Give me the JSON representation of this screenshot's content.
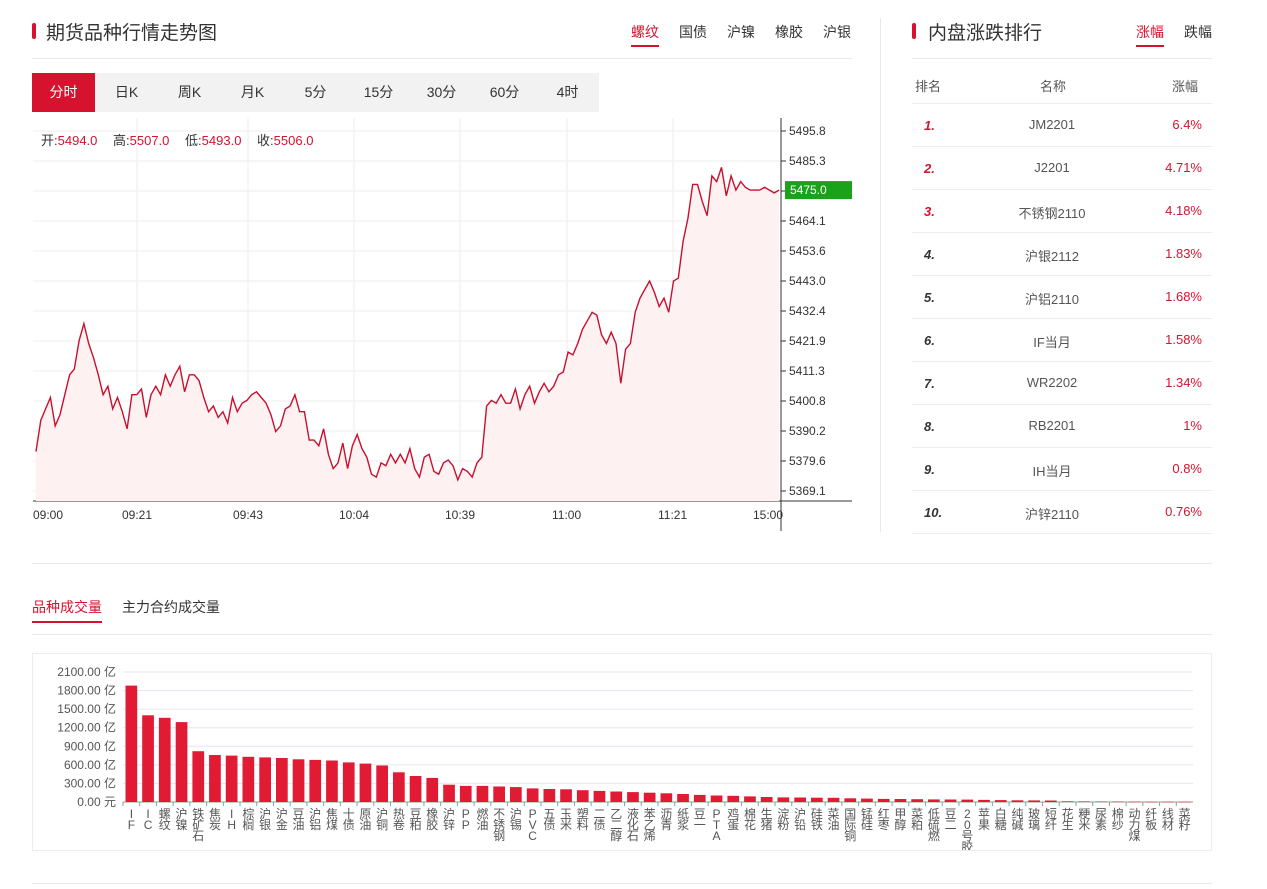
{
  "left_panel": {
    "title": "期货品种行情走势图",
    "tabs": [
      {
        "label": "螺纹",
        "active": true
      },
      {
        "label": "国债",
        "active": false
      },
      {
        "label": "沪镍",
        "active": false
      },
      {
        "label": "橡胶",
        "active": false
      },
      {
        "label": "沪银",
        "active": false
      }
    ],
    "periods": [
      {
        "label": "分时",
        "active": true
      },
      {
        "label": "日K",
        "active": false
      },
      {
        "label": "周K",
        "active": false
      },
      {
        "label": "月K",
        "active": false
      },
      {
        "label": "5分",
        "active": false
      },
      {
        "label": "15分",
        "active": false
      },
      {
        "label": "30分",
        "active": false
      },
      {
        "label": "60分",
        "active": false
      },
      {
        "label": "4时",
        "active": false
      }
    ],
    "ohlc": {
      "open_label": "开:",
      "open": "5494.0",
      "high_label": "高:",
      "high": "5507.0",
      "low_label": "低:",
      "low": "5493.0",
      "close_label": "收:",
      "close": "5506.0"
    }
  },
  "price_chart": {
    "type": "line",
    "y_ticks": [
      "5495.8",
      "5485.3",
      "5475.0",
      "5464.1",
      "5453.6",
      "5443.0",
      "5432.4",
      "5421.9",
      "5411.3",
      "5400.8",
      "5390.2",
      "5379.6",
      "5369.1"
    ],
    "ylim": [
      5369.1,
      5495.8
    ],
    "current_price": "5475.0",
    "x_ticks": [
      "09:00",
      "09:21",
      "09:43",
      "10:04",
      "10:39",
      "11:00",
      "11:21",
      "15:00"
    ],
    "values": [
      5383,
      5394,
      5398,
      5402,
      5392,
      5396,
      5403,
      5410,
      5412,
      5422,
      5428,
      5421,
      5416,
      5410,
      5403,
      5406,
      5398,
      5402,
      5397,
      5391,
      5403,
      5403,
      5405,
      5395,
      5403,
      5406,
      5403,
      5410,
      5406,
      5410,
      5413,
      5404,
      5410,
      5410,
      5408,
      5402,
      5397,
      5399,
      5395,
      5397,
      5393,
      5402,
      5397,
      5400,
      5401,
      5403,
      5404,
      5402,
      5400,
      5396,
      5390,
      5392,
      5398,
      5399,
      5403,
      5397,
      5397,
      5387,
      5387,
      5385,
      5391,
      5382,
      5377,
      5379,
      5386,
      5377,
      5385,
      5389,
      5384,
      5381,
      5375,
      5374,
      5379,
      5378,
      5382,
      5379,
      5382,
      5379,
      5384,
      5377,
      5374,
      5381,
      5382,
      5376,
      5375,
      5379,
      5380,
      5378,
      5373,
      5377,
      5376,
      5374,
      5379,
      5381,
      5399,
      5401,
      5400,
      5403,
      5400,
      5400,
      5405,
      5398,
      5403,
      5406,
      5400,
      5404,
      5407,
      5404,
      5406,
      5410,
      5411,
      5418,
      5417,
      5421,
      5426,
      5429,
      5432,
      5431,
      5424,
      5421,
      5425,
      5421,
      5407,
      5419,
      5421,
      5432,
      5437,
      5440,
      5443,
      5439,
      5434,
      5437,
      5432,
      5443,
      5444,
      5457,
      5465,
      5477,
      5477,
      5471,
      5466,
      5480,
      5478,
      5483,
      5473,
      5480,
      5475,
      5478,
      5476,
      5475,
      5475,
      5475,
      5476,
      5475,
      5474,
      5475
    ]
  },
  "right_panel": {
    "title": "内盘涨跌排行",
    "tabs": [
      {
        "label": "涨幅",
        "active": true
      },
      {
        "label": "跌幅",
        "active": false
      }
    ],
    "headers": {
      "rank": "排名",
      "name": "名称",
      "change": "涨幅"
    },
    "rows": [
      {
        "rank": "1.",
        "name": "JM2201",
        "change": "6.4%"
      },
      {
        "rank": "2.",
        "name": "J2201",
        "change": "4.71%"
      },
      {
        "rank": "3.",
        "name": "不锈钢2110",
        "change": "4.18%"
      },
      {
        "rank": "4.",
        "name": "沪银2112",
        "change": "1.83%"
      },
      {
        "rank": "5.",
        "name": "沪铝2110",
        "change": "1.68%"
      },
      {
        "rank": "6.",
        "name": "IF当月",
        "change": "1.58%"
      },
      {
        "rank": "7.",
        "name": "WR2202",
        "change": "1.34%"
      },
      {
        "rank": "8.",
        "name": "RB2201",
        "change": "1%"
      },
      {
        "rank": "9.",
        "name": "IH当月",
        "change": "0.8%"
      },
      {
        "rank": "10.",
        "name": "沪锌2110",
        "change": "0.76%"
      }
    ]
  },
  "volume_section": {
    "tabs": [
      {
        "label": "品种成交量",
        "active": true
      },
      {
        "label": "主力合约成交量",
        "active": false
      }
    ]
  },
  "chart_data": {
    "type": "bar",
    "y_ticks": [
      "2100.00 亿",
      "1800.00 亿",
      "1500.00 亿",
      "1200.00 亿",
      "900.00 亿",
      "600.00 亿",
      "300.00 亿",
      "0.00 元"
    ],
    "ylim": [
      0,
      2100
    ],
    "categories": [
      "IF",
      "IC",
      "螺纹",
      "沪镍",
      "铁矿石",
      "焦炭",
      "IH",
      "棕榈",
      "沪银",
      "沪金",
      "豆油",
      "沪铝",
      "焦煤",
      "十债",
      "原油",
      "沪铜",
      "热卷",
      "豆粕",
      "橡胶",
      "沪锌",
      "PP",
      "燃油",
      "不锈钢",
      "沪锡",
      "PVC",
      "五债",
      "玉米",
      "塑料",
      "二债",
      "乙二醇",
      "液化石",
      "苯乙烯",
      "沥青",
      "纸浆",
      "豆一",
      "PTA",
      "鸡蛋",
      "棉花",
      "生猪",
      "淀粉",
      "沪铅",
      "硅铁",
      "菜油",
      "国际铜",
      "锰硅",
      "红枣",
      "甲醇",
      "菜粕",
      "低硫燃",
      "豆二",
      "20号胶",
      "苹果",
      "白糖",
      "纯碱",
      "玻璃",
      "短纤",
      "花生",
      "粳米",
      "尿素",
      "棉纱",
      "动力煤",
      "纤板",
      "线材",
      "菜籽"
    ],
    "values": [
      1880,
      1400,
      1360,
      1290,
      820,
      760,
      750,
      730,
      720,
      710,
      690,
      680,
      670,
      640,
      620,
      590,
      480,
      420,
      390,
      280,
      260,
      260,
      250,
      240,
      220,
      210,
      205,
      190,
      180,
      170,
      160,
      150,
      140,
      130,
      115,
      105,
      100,
      90,
      80,
      75,
      72,
      70,
      68,
      60,
      55,
      50,
      48,
      45,
      42,
      40,
      38,
      34,
      30,
      28,
      26,
      24,
      12,
      10,
      8,
      6,
      5,
      4,
      3,
      3
    ]
  }
}
